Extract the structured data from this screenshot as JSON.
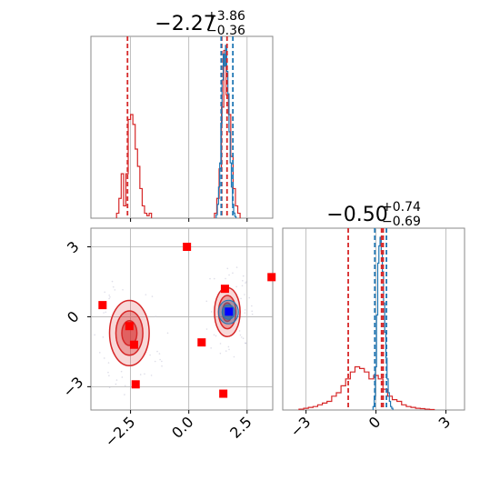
{
  "chart_data": {
    "type": "corner",
    "colors": {
      "blue": "#1f77b4",
      "red": "#d62728",
      "grid": "#b0b0b0",
      "marker": "#ff0000",
      "truth": "#0000ff"
    },
    "params": [
      {
        "title": {
          "median": "−2.27",
          "upper": "+3.86",
          "lower": "−0.36"
        },
        "range": [
          -4.2,
          3.6
        ],
        "ticks": [
          -2.5,
          0.0,
          2.5
        ],
        "tick_labels": [
          "−2.5",
          "0.0",
          "2.5"
        ]
      },
      {
        "title": {
          "median": "−0.50",
          "upper": "+0.74",
          "lower": "−0.69"
        },
        "range": [
          -4.0,
          3.8
        ],
        "ticks": [
          -3,
          0,
          3
        ],
        "tick_labels": [
          "−3",
          "0",
          "3"
        ]
      }
    ],
    "hist1": {
      "red": {
        "bins": [
          -3.05,
          -2.95,
          -2.85,
          -2.75,
          -2.65,
          -2.55,
          -2.45,
          -2.35,
          -2.25,
          -2.15,
          -2.05,
          -1.95,
          -1.85,
          -1.75,
          -1.65,
          1.15,
          1.25,
          1.35,
          1.45,
          1.55,
          1.65,
          1.75,
          1.85,
          1.95,
          2.05,
          2.15
        ],
        "values": [
          0.02,
          0.08,
          0.18,
          0.05,
          0.18,
          0.4,
          0.42,
          0.38,
          0.28,
          0.21,
          0.12,
          0.05,
          0.02,
          0.01,
          0.02,
          0.02,
          0.08,
          0.2,
          0.45,
          0.68,
          0.5,
          0.42,
          0.25,
          0.12,
          0.05,
          0.02
        ]
      },
      "blue": {
        "bins": [
          1.2,
          1.25,
          1.3,
          1.35,
          1.4,
          1.45,
          1.5,
          1.55,
          1.6,
          1.65,
          1.7,
          1.75,
          1.8,
          1.85,
          1.9,
          1.95,
          2.0
        ],
        "values": [
          0.02,
          0.08,
          0.18,
          0.32,
          0.55,
          0.8,
          0.95,
          0.88,
          1.0,
          0.85,
          0.72,
          0.5,
          0.32,
          0.18,
          0.08,
          0.03,
          0.01
        ]
      },
      "red_quantiles": [
        -2.63,
        1.41,
        1.64
      ],
      "blue_quantiles": [
        1.39,
        1.89
      ]
    },
    "hist2": {
      "red": {
        "bins": [
          -3.2,
          -3.0,
          -2.8,
          -2.6,
          -2.4,
          -2.2,
          -2.0,
          -1.8,
          -1.6,
          -1.4,
          -1.2,
          -1.0,
          -0.8,
          -0.6,
          -0.4,
          -0.2,
          0.0,
          0.2,
          0.4,
          0.6,
          0.8,
          1.0,
          1.2,
          1.4,
          1.6,
          1.8,
          2.0,
          2.2,
          2.4
        ],
        "values": [
          0.005,
          0.01,
          0.015,
          0.02,
          0.03,
          0.04,
          0.05,
          0.08,
          0.1,
          0.14,
          0.18,
          0.22,
          0.25,
          0.24,
          0.22,
          0.18,
          0.2,
          0.18,
          0.12,
          0.08,
          0.06,
          0.05,
          0.03,
          0.02,
          0.015,
          0.01,
          0.008,
          0.005,
          0.003
        ]
      },
      "blue": {
        "bins": [
          -0.1,
          -0.05,
          0.0,
          0.05,
          0.1,
          0.15,
          0.2,
          0.25,
          0.3,
          0.35,
          0.4,
          0.45,
          0.5,
          0.55,
          0.6,
          0.65,
          0.7
        ],
        "values": [
          0.02,
          0.08,
          0.25,
          0.55,
          0.85,
          0.95,
          1.0,
          0.92,
          0.8,
          0.62,
          0.45,
          0.3,
          0.18,
          0.1,
          0.05,
          0.02,
          0.01
        ]
      },
      "red_quantiles": [
        -1.19,
        0.24,
        0.31
      ],
      "blue_quantiles": [
        -0.05,
        0.45
      ]
    },
    "scatter": {
      "markers": [
        [
          -0.08,
          3.0
        ],
        [
          3.55,
          1.7
        ],
        [
          -3.7,
          0.5
        ],
        [
          1.55,
          1.2
        ],
        [
          -2.35,
          -1.2
        ],
        [
          -2.55,
          -0.4
        ],
        [
          0.55,
          -1.1
        ],
        [
          -2.28,
          -2.9
        ],
        [
          1.48,
          -3.3
        ]
      ],
      "truth": [
        1.72,
        0.22
      ],
      "red_blobs": [
        {
          "cx": -2.55,
          "cy": -0.7,
          "rx": 0.85,
          "ry": 1.4
        },
        {
          "cx": 1.65,
          "cy": 0.2,
          "rx": 0.55,
          "ry": 1.05
        }
      ]
    }
  }
}
